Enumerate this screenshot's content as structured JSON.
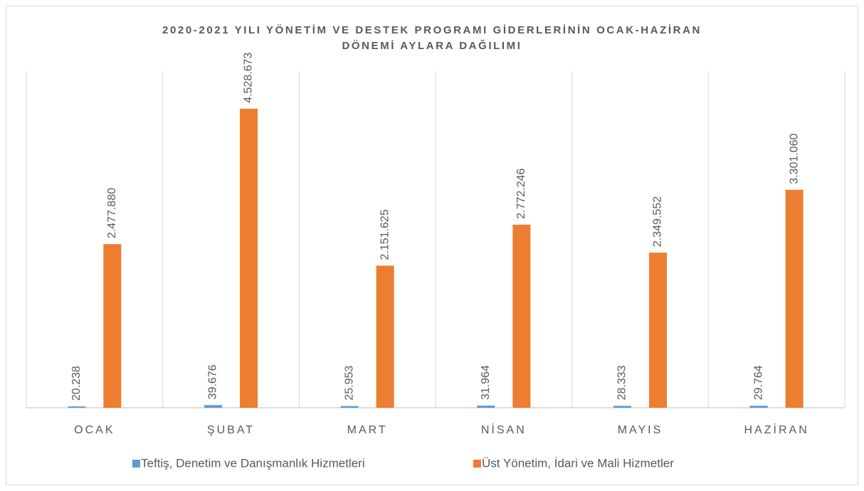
{
  "chart_data": {
    "type": "bar",
    "title": [
      "2020-2021 YILI YÖNETİM VE DESTEK PROGRAMI GİDERLERİNİN OCAK-HAZİRAN",
      "DÖNEMİ AYLARA DAĞILIMI"
    ],
    "categories": [
      "OCAK",
      "ŞUBAT",
      "MART",
      "NİSAN",
      "MAYIS",
      "HAZİRAN"
    ],
    "series": [
      {
        "name": "Teftiş, Denetim ve Danışmanlık Hizmetleri",
        "color": "#5b9bd5",
        "values": [
          20238,
          39676,
          25953,
          31964,
          28333,
          29764
        ],
        "value_labels": [
          "20.238",
          "39.676",
          "25.953",
          "31.964",
          "28.333",
          "29.764"
        ]
      },
      {
        "name": "Üst Yönetim, İdari ve Mali Hizmetler",
        "color": "#ed7d31",
        "values": [
          2477880,
          4528673,
          2151625,
          2772246,
          2349552,
          3301060
        ],
        "value_labels": [
          "2.477.880",
          "4.528.673",
          "2.151.625",
          "2.772.246",
          "2.349.552",
          "3.301.060"
        ]
      }
    ],
    "ylim": [
      0,
      5000000
    ],
    "legend": "bottom"
  }
}
